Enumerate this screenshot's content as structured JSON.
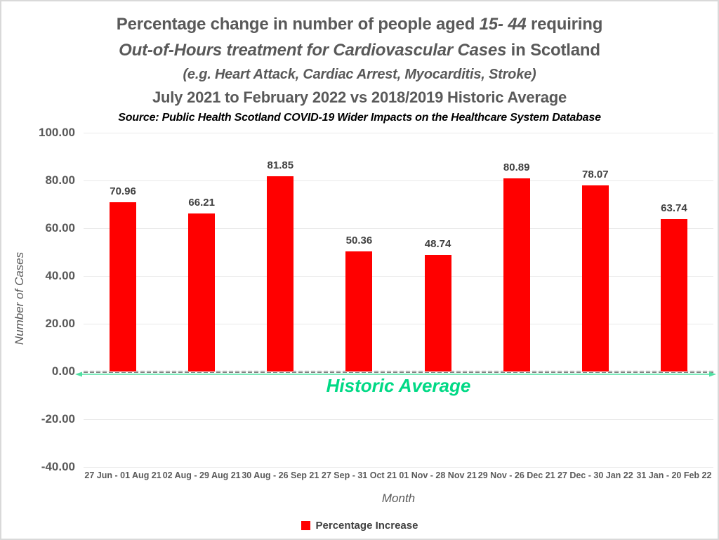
{
  "title": {
    "line1_pre": "Percentage change in number of people aged ",
    "line1_italic": "15- 44",
    "line1_post": " requiring",
    "line2_italic": "Out-of-Hours treatment for Cardiovascular Cases",
    "line2_post": " in Scotland",
    "line3": "(e.g. Heart Attack, Cardiac Arrest, Myocarditis, Stroke)",
    "line4": "July 2021 to February 2022 vs 2018/2019 Historic Average",
    "source": "Source: Public Health Scotland COVID-19 Wider Impacts on the Healthcare System Database"
  },
  "chart_data": {
    "type": "bar",
    "title": "Percentage change in number of people aged 15- 44 requiring Out-of-Hours treatment for Cardiovascular Cases in Scotland (e.g. Heart Attack, Cardiac Arrest, Myocarditis, Stroke) July 2021 to February 2022 vs 2018/2019 Historic Average",
    "subtitle": "Source: Public Health Scotland COVID-19 Wider Impacts on the Healthcare System Database",
    "categories": [
      "27 Jun - 01 Aug 21",
      "02 Aug - 29 Aug 21",
      "30 Aug - 26 Sep 21",
      "27 Sep - 31 Oct 21",
      "01 Nov - 28 Nov 21",
      "29 Nov - 26 Dec 21",
      "27 Dec - 30 Jan 22",
      "31 Jan - 20 Feb 22"
    ],
    "series": [
      {
        "name": "Percentage Increase",
        "values": [
          70.96,
          66.21,
          81.85,
          50.36,
          48.74,
          80.89,
          78.07,
          63.74
        ]
      }
    ],
    "values": [
      70.96,
      66.21,
      81.85,
      50.36,
      48.74,
      80.89,
      78.07,
      63.74
    ],
    "xlabel": "Month",
    "ylabel": "Number of Cases",
    "ylim": [
      -40,
      100
    ],
    "yticks": [
      100,
      80,
      60,
      40,
      20,
      0,
      -20,
      -40
    ],
    "ytick_format": "0.00",
    "grid": true,
    "legend": [
      "Percentage Increase"
    ],
    "legend_position": "bottom",
    "bar_color": "#ff0000",
    "gridline_color": "#e9e9e9",
    "zero_line": {
      "style": "dashed",
      "color": "#808080"
    },
    "annotations": [
      {
        "text": "Historic Average",
        "y": 0,
        "color": "#00d985",
        "shape": "double-headed-arrow"
      }
    ]
  }
}
